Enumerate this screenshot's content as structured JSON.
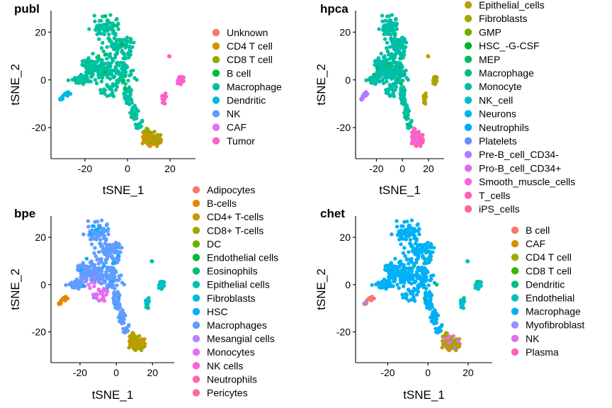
{
  "chart_data": [
    {
      "type": "scatter",
      "title": "publ",
      "xlabel": "tSNE_1",
      "ylabel": "tSNE_2",
      "xlim": [
        -36,
        32
      ],
      "ylim": [
        -33,
        29
      ],
      "xticks": [
        -20,
        0,
        20
      ],
      "yticks": [
        -20,
        0,
        20
      ],
      "grid": false,
      "legend": "right",
      "series": [
        {
          "name": "Unknown",
          "color": "#F8766D"
        },
        {
          "name": "CD4 T cell",
          "color": "#D39200"
        },
        {
          "name": "CD8 T cell",
          "color": "#93AA00"
        },
        {
          "name": "B cell",
          "color": "#00BA38"
        },
        {
          "name": "Macrophage",
          "color": "#00C19F"
        },
        {
          "name": "Dendritic",
          "color": "#00B9E3"
        },
        {
          "name": "NK",
          "color": "#619CFF"
        },
        {
          "name": "CAF",
          "color": "#DB72FB"
        },
        {
          "name": "Tumor",
          "color": "#FF61C3"
        }
      ]
    },
    {
      "type": "scatter",
      "title": "hpca",
      "xlabel": "tSNE_1",
      "ylabel": "tSNE_2",
      "xlim": [
        -36,
        32
      ],
      "ylim": [
        -33,
        29
      ],
      "xticks": [
        -20,
        0,
        20
      ],
      "yticks": [
        -20,
        0,
        20
      ],
      "grid": false,
      "legend": "right",
      "series": [
        {
          "name": "Epithelial_cells",
          "color": "#B79F00"
        },
        {
          "name": "Fibroblasts",
          "color": "#9BA800"
        },
        {
          "name": "GMP",
          "color": "#6FB000"
        },
        {
          "name": "HSC_-G-CSF",
          "color": "#00B524"
        },
        {
          "name": "MEP",
          "color": "#00BA5A"
        },
        {
          "name": "Macrophage",
          "color": "#00BE83"
        },
        {
          "name": "Monocyte",
          "color": "#00BFA8"
        },
        {
          "name": "NK_cell",
          "color": "#00BDC8"
        },
        {
          "name": "Neurons",
          "color": "#00B6E5"
        },
        {
          "name": "Neutrophils",
          "color": "#00A8FF"
        },
        {
          "name": "Platelets",
          "color": "#6A8EFF"
        },
        {
          "name": "Pre-B_cell_CD34-",
          "color": "#B07CFF"
        },
        {
          "name": "Pro-B_cell_CD34+",
          "color": "#DE69F0"
        },
        {
          "name": "Smooth_muscle_cells",
          "color": "#F763E0"
        },
        {
          "name": "T_cells",
          "color": "#FF61B8"
        },
        {
          "name": "iPS_cells",
          "color": "#FF6690"
        }
      ]
    },
    {
      "type": "scatter",
      "title": "bpe",
      "xlabel": "tSNE_1",
      "ylabel": "tSNE_2",
      "xlim": [
        -36,
        32
      ],
      "ylim": [
        -33,
        29
      ],
      "xticks": [
        -20,
        0,
        20
      ],
      "yticks": [
        -20,
        0,
        20
      ],
      "grid": false,
      "legend": "right",
      "series": [
        {
          "name": "Adipocytes",
          "color": "#F8766D"
        },
        {
          "name": "B-cells",
          "color": "#E58700"
        },
        {
          "name": "CD4+ T-cells",
          "color": "#C99800"
        },
        {
          "name": "CD8+ T-cells",
          "color": "#A3A500"
        },
        {
          "name": "DC",
          "color": "#6BB100"
        },
        {
          "name": "Endothelial cells",
          "color": "#00BA38"
        },
        {
          "name": "Eosinophils",
          "color": "#00BF7D"
        },
        {
          "name": "Epithelial cells",
          "color": "#00C0AF"
        },
        {
          "name": "Fibroblasts",
          "color": "#00BCD8"
        },
        {
          "name": "HSC",
          "color": "#00B0F6"
        },
        {
          "name": "Macrophages",
          "color": "#619CFF"
        },
        {
          "name": "Mesangial cells",
          "color": "#B983FF"
        },
        {
          "name": "Monocytes",
          "color": "#E76BF3"
        },
        {
          "name": "NK cells",
          "color": "#FD61D1"
        },
        {
          "name": "Neutrophils",
          "color": "#FF67A4"
        },
        {
          "name": "Pericytes",
          "color": "#FF6C91"
        }
      ]
    },
    {
      "type": "scatter",
      "title": "chet",
      "xlabel": "tSNE_1",
      "ylabel": "tSNE_2",
      "xlim": [
        -36,
        32
      ],
      "ylim": [
        -33,
        29
      ],
      "xticks": [
        -20,
        0,
        20
      ],
      "yticks": [
        -20,
        0,
        20
      ],
      "grid": false,
      "legend": "right",
      "series": [
        {
          "name": "B cell",
          "color": "#F8766D"
        },
        {
          "name": "CAF",
          "color": "#D89000"
        },
        {
          "name": "CD4 T cell",
          "color": "#A3A500"
        },
        {
          "name": "CD8 T cell",
          "color": "#39B600"
        },
        {
          "name": "Dendritic",
          "color": "#00BF7D"
        },
        {
          "name": "Endothelial",
          "color": "#00BFC4"
        },
        {
          "name": "Macrophage",
          "color": "#00B0F6"
        },
        {
          "name": "Myofibroblast",
          "color": "#9590FF"
        },
        {
          "name": "NK",
          "color": "#E76BF3"
        },
        {
          "name": "Plasma",
          "color": "#FF62BC"
        }
      ]
    }
  ]
}
